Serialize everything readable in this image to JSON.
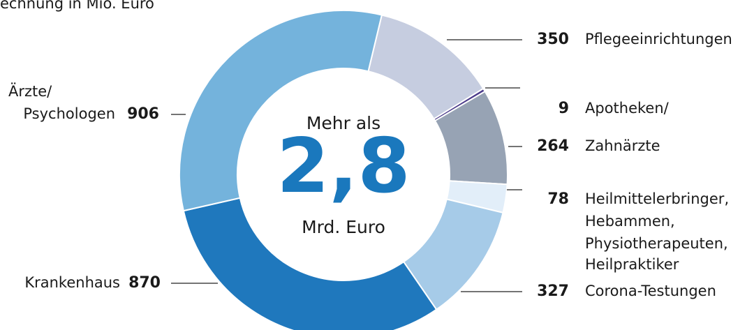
{
  "chart_data": {
    "type": "donut",
    "subtitle": "echnung in Mio. Euro",
    "center_text": [
      "Mehr als",
      "2,8",
      "Mrd. Euro"
    ],
    "categories": [
      [
        "Pflegeeinrichtungen"
      ],
      [
        "Apotheken/"
      ],
      [
        "Zahnärzte"
      ],
      [
        "Heilmittelerbringer,",
        "Hebammen,",
        "Physiotherapeuten,",
        "Heilpraktiker"
      ],
      [
        "Corona-Testungen"
      ],
      [
        "Krankenhaus"
      ],
      [
        "Ärzte/",
        "Psychologen"
      ]
    ],
    "values": [
      350,
      9,
      264,
      78,
      327,
      870,
      906
    ],
    "colors": [
      "#c6cde0",
      "#4a3a8a",
      "#97a3b4",
      "#e2eef9",
      "#a6cbe8",
      "#1f78bd",
      "#74b3dc"
    ],
    "center_color": "#1a78bd"
  }
}
